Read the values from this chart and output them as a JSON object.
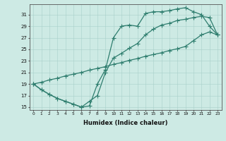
{
  "xlabel": "Humidex (Indice chaleur)",
  "x_hours": [
    0,
    1,
    2,
    3,
    4,
    5,
    6,
    7,
    8,
    9,
    10,
    11,
    12,
    13,
    14,
    15,
    16,
    17,
    18,
    19,
    20,
    21,
    22,
    23
  ],
  "line_upper": [
    19,
    18,
    17.2,
    16.5,
    16.0,
    15.5,
    15.0,
    15.2,
    19.0,
    21.5,
    27.0,
    29.0,
    29.2,
    29.0,
    31.2,
    31.5,
    31.5,
    31.7,
    32.0,
    32.2,
    31.5,
    31.0,
    29.0,
    27.5
  ],
  "line_diag": [
    19,
    19.3,
    19.7,
    20.0,
    20.4,
    20.7,
    21.0,
    21.4,
    21.7,
    22.0,
    22.4,
    22.7,
    23.1,
    23.4,
    23.8,
    24.1,
    24.4,
    24.8,
    25.1,
    25.5,
    26.5,
    27.5,
    28.0,
    27.5
  ],
  "line_mid": [
    19,
    18,
    17.2,
    16.5,
    16.0,
    15.5,
    15.0,
    16.0,
    17.0,
    21.0,
    23.5,
    24.3,
    25.2,
    26.0,
    27.5,
    28.5,
    29.2,
    29.5,
    30.0,
    30.2,
    30.5,
    30.7,
    30.5,
    27.5
  ],
  "color": "#2e7d6e",
  "bg_color": "#cdeae4",
  "grid_color": "#a8d0ca",
  "ylim": [
    14.5,
    32.8
  ],
  "xlim": [
    -0.5,
    23.5
  ],
  "yticks": [
    15,
    17,
    19,
    21,
    23,
    25,
    27,
    29,
    31
  ],
  "xticks": [
    0,
    1,
    2,
    3,
    4,
    5,
    6,
    7,
    8,
    9,
    10,
    11,
    12,
    13,
    14,
    15,
    16,
    17,
    18,
    19,
    20,
    21,
    22,
    23
  ]
}
